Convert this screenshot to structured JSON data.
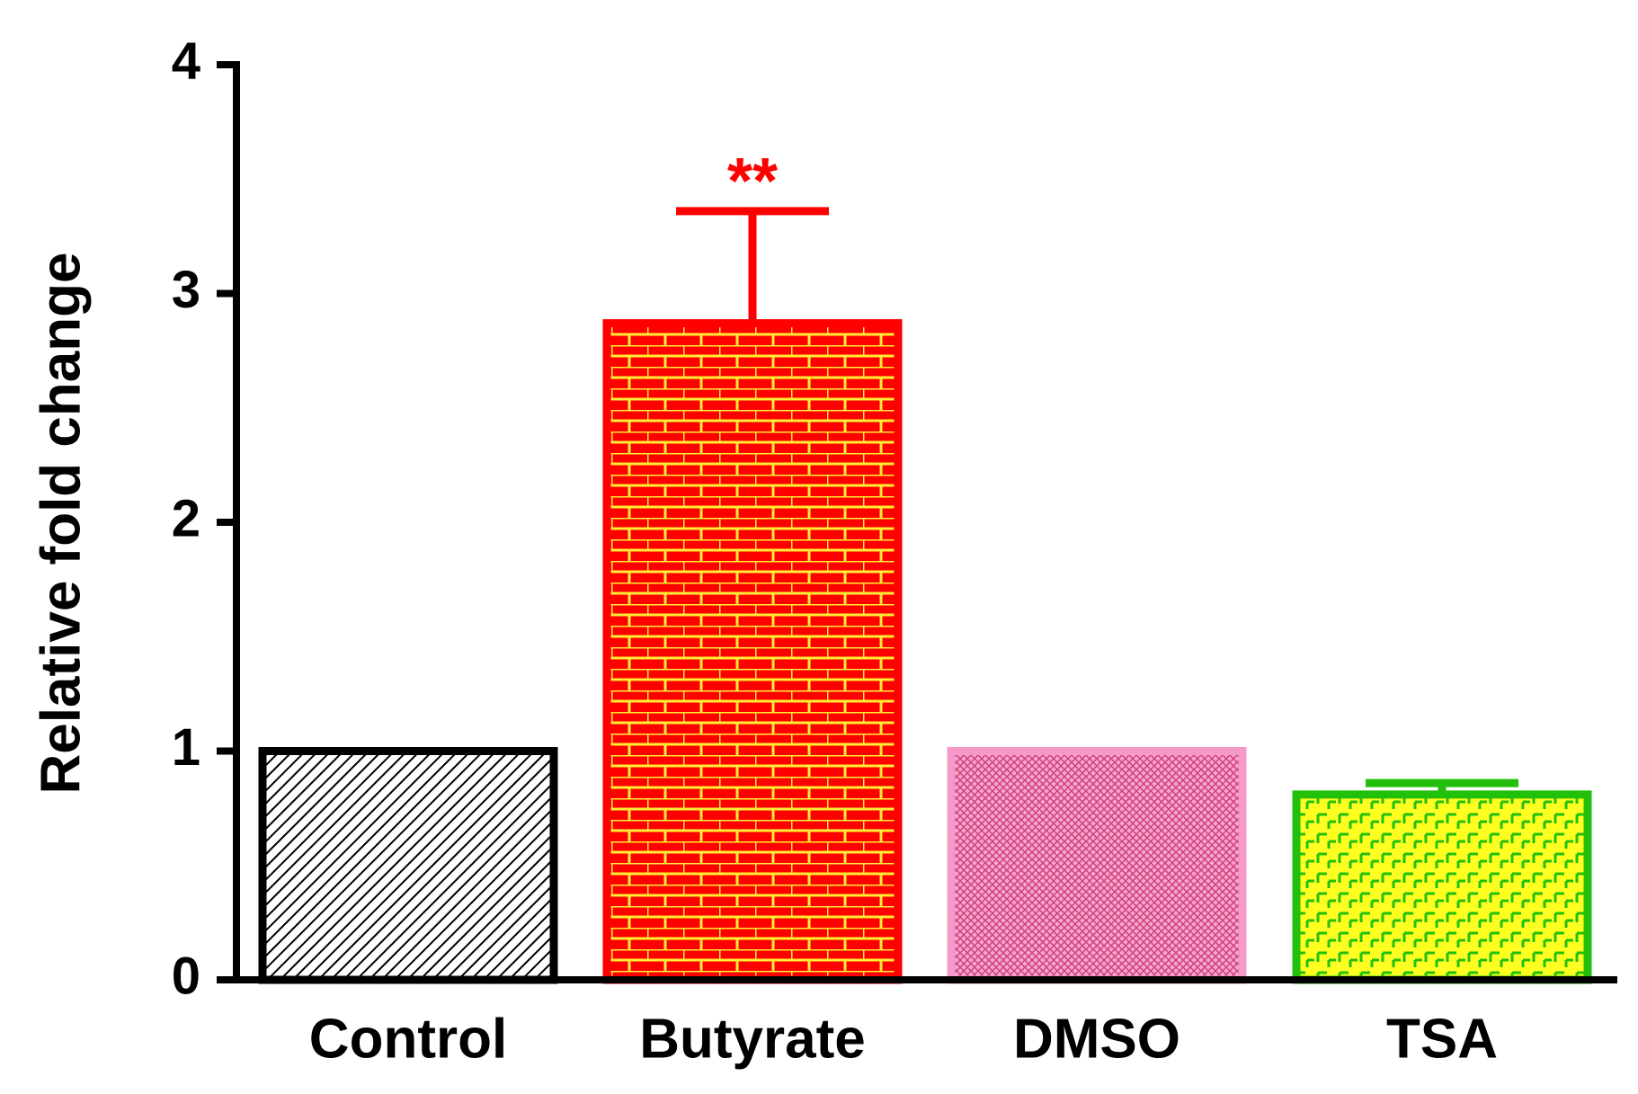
{
  "chart_data": {
    "type": "bar",
    "ylabel": "Relative fold change",
    "categories": [
      "Control",
      "Butyrate",
      "DMSO",
      "TSA"
    ],
    "values": [
      1.0,
      2.87,
      1.0,
      0.81
    ],
    "errors": [
      null,
      0.49,
      null,
      0.05
    ],
    "colors": [
      "#000000",
      "#ff0000",
      "#f59ac8",
      "#22c00a"
    ],
    "annotations": [
      null,
      "**",
      null,
      null
    ],
    "ylim": [
      0,
      4
    ],
    "yticks": [
      0,
      1,
      2,
      3,
      4
    ]
  }
}
